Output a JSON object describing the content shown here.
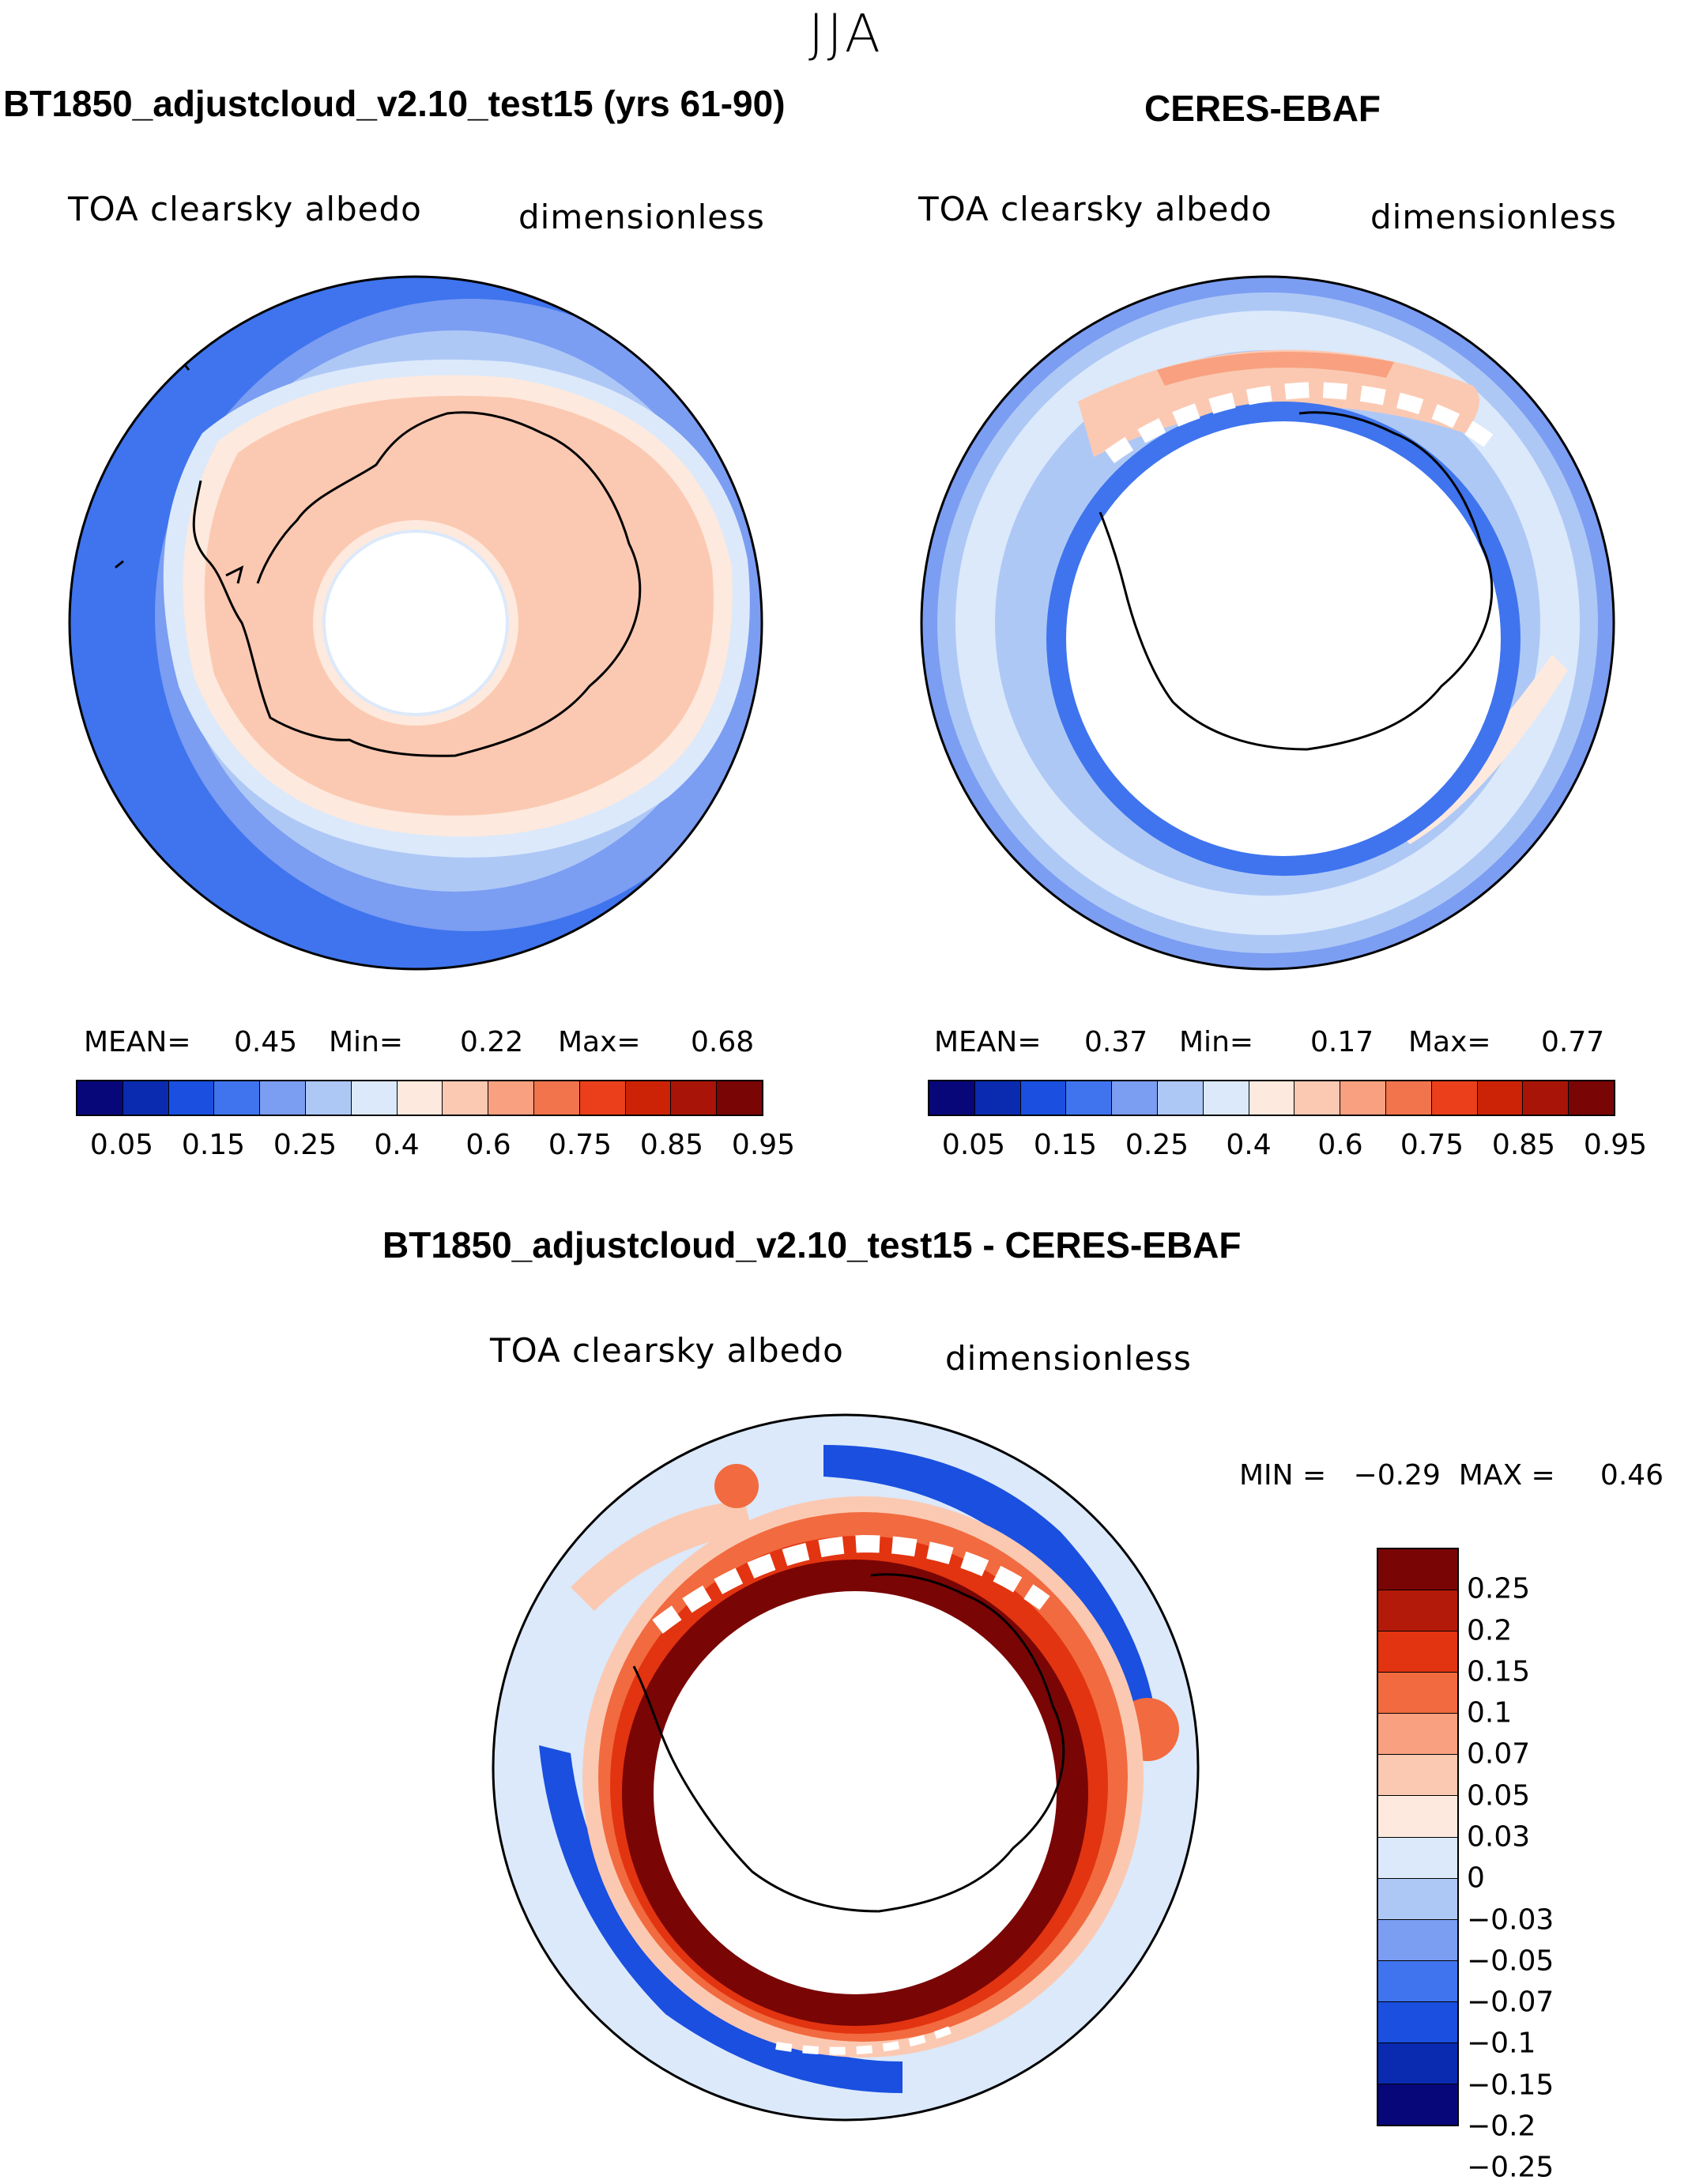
{
  "season": "JJA",
  "panels": [
    {
      "title": "BT1850_adjustcloud_v2.10_test15 (yrs 61-90)",
      "variable": "TOA clearsky albedo",
      "units": "dimensionless",
      "mean_label": "MEAN=",
      "mean_value": "0.45",
      "min_label": "Min=",
      "min_value": "0.22",
      "max_label": "Max=",
      "max_value": "0.68"
    },
    {
      "title": "CERES-EBAF",
      "variable": "TOA clearsky albedo",
      "units": "dimensionless",
      "mean_label": "MEAN=",
      "mean_value": "0.37",
      "min_label": "Min=",
      "min_value": "0.17",
      "max_label": "Max=",
      "max_value": "0.77"
    }
  ],
  "diff_panel": {
    "title": "BT1850_adjustcloud_v2.10_test15 - CERES-EBAF",
    "variable": "TOA clearsky albedo",
    "units": "dimensionless",
    "minmax": "MIN =   −0.29  MAX =     0.46"
  },
  "abs_colorbar": {
    "colors": [
      "#08077a",
      "#0a2bb0",
      "#1a4fe0",
      "#3f74ee",
      "#7b9df2",
      "#aec8f6",
      "#dbe9fb",
      "#fde9dd",
      "#fbc9b2",
      "#f8a07f",
      "#f2744d",
      "#ea3f1a",
      "#cc2206",
      "#a81408",
      "#7a0505"
    ],
    "tick_labels": [
      "0.05",
      "0.15",
      "0.25",
      "0.4",
      "0.6",
      "0.75",
      "0.85",
      "0.95"
    ]
  },
  "diff_colorbar": {
    "colors": [
      "#7a0505",
      "#b41a0a",
      "#e23410",
      "#f26a3f",
      "#f8a07f",
      "#fbc9b2",
      "#fde9dd",
      "#dbe9fb",
      "#aec8f6",
      "#7b9df2",
      "#3f74ee",
      "#1a4fe0",
      "#0a2bb0",
      "#08077a"
    ],
    "tick_labels": [
      "0.25",
      "0.2",
      "0.15",
      "0.1",
      "0.07",
      "0.05",
      "0.03",
      "0",
      "−0.03",
      "−0.05",
      "−0.07",
      "−0.1",
      "−0.15",
      "−0.2",
      "−0.25"
    ]
  }
}
